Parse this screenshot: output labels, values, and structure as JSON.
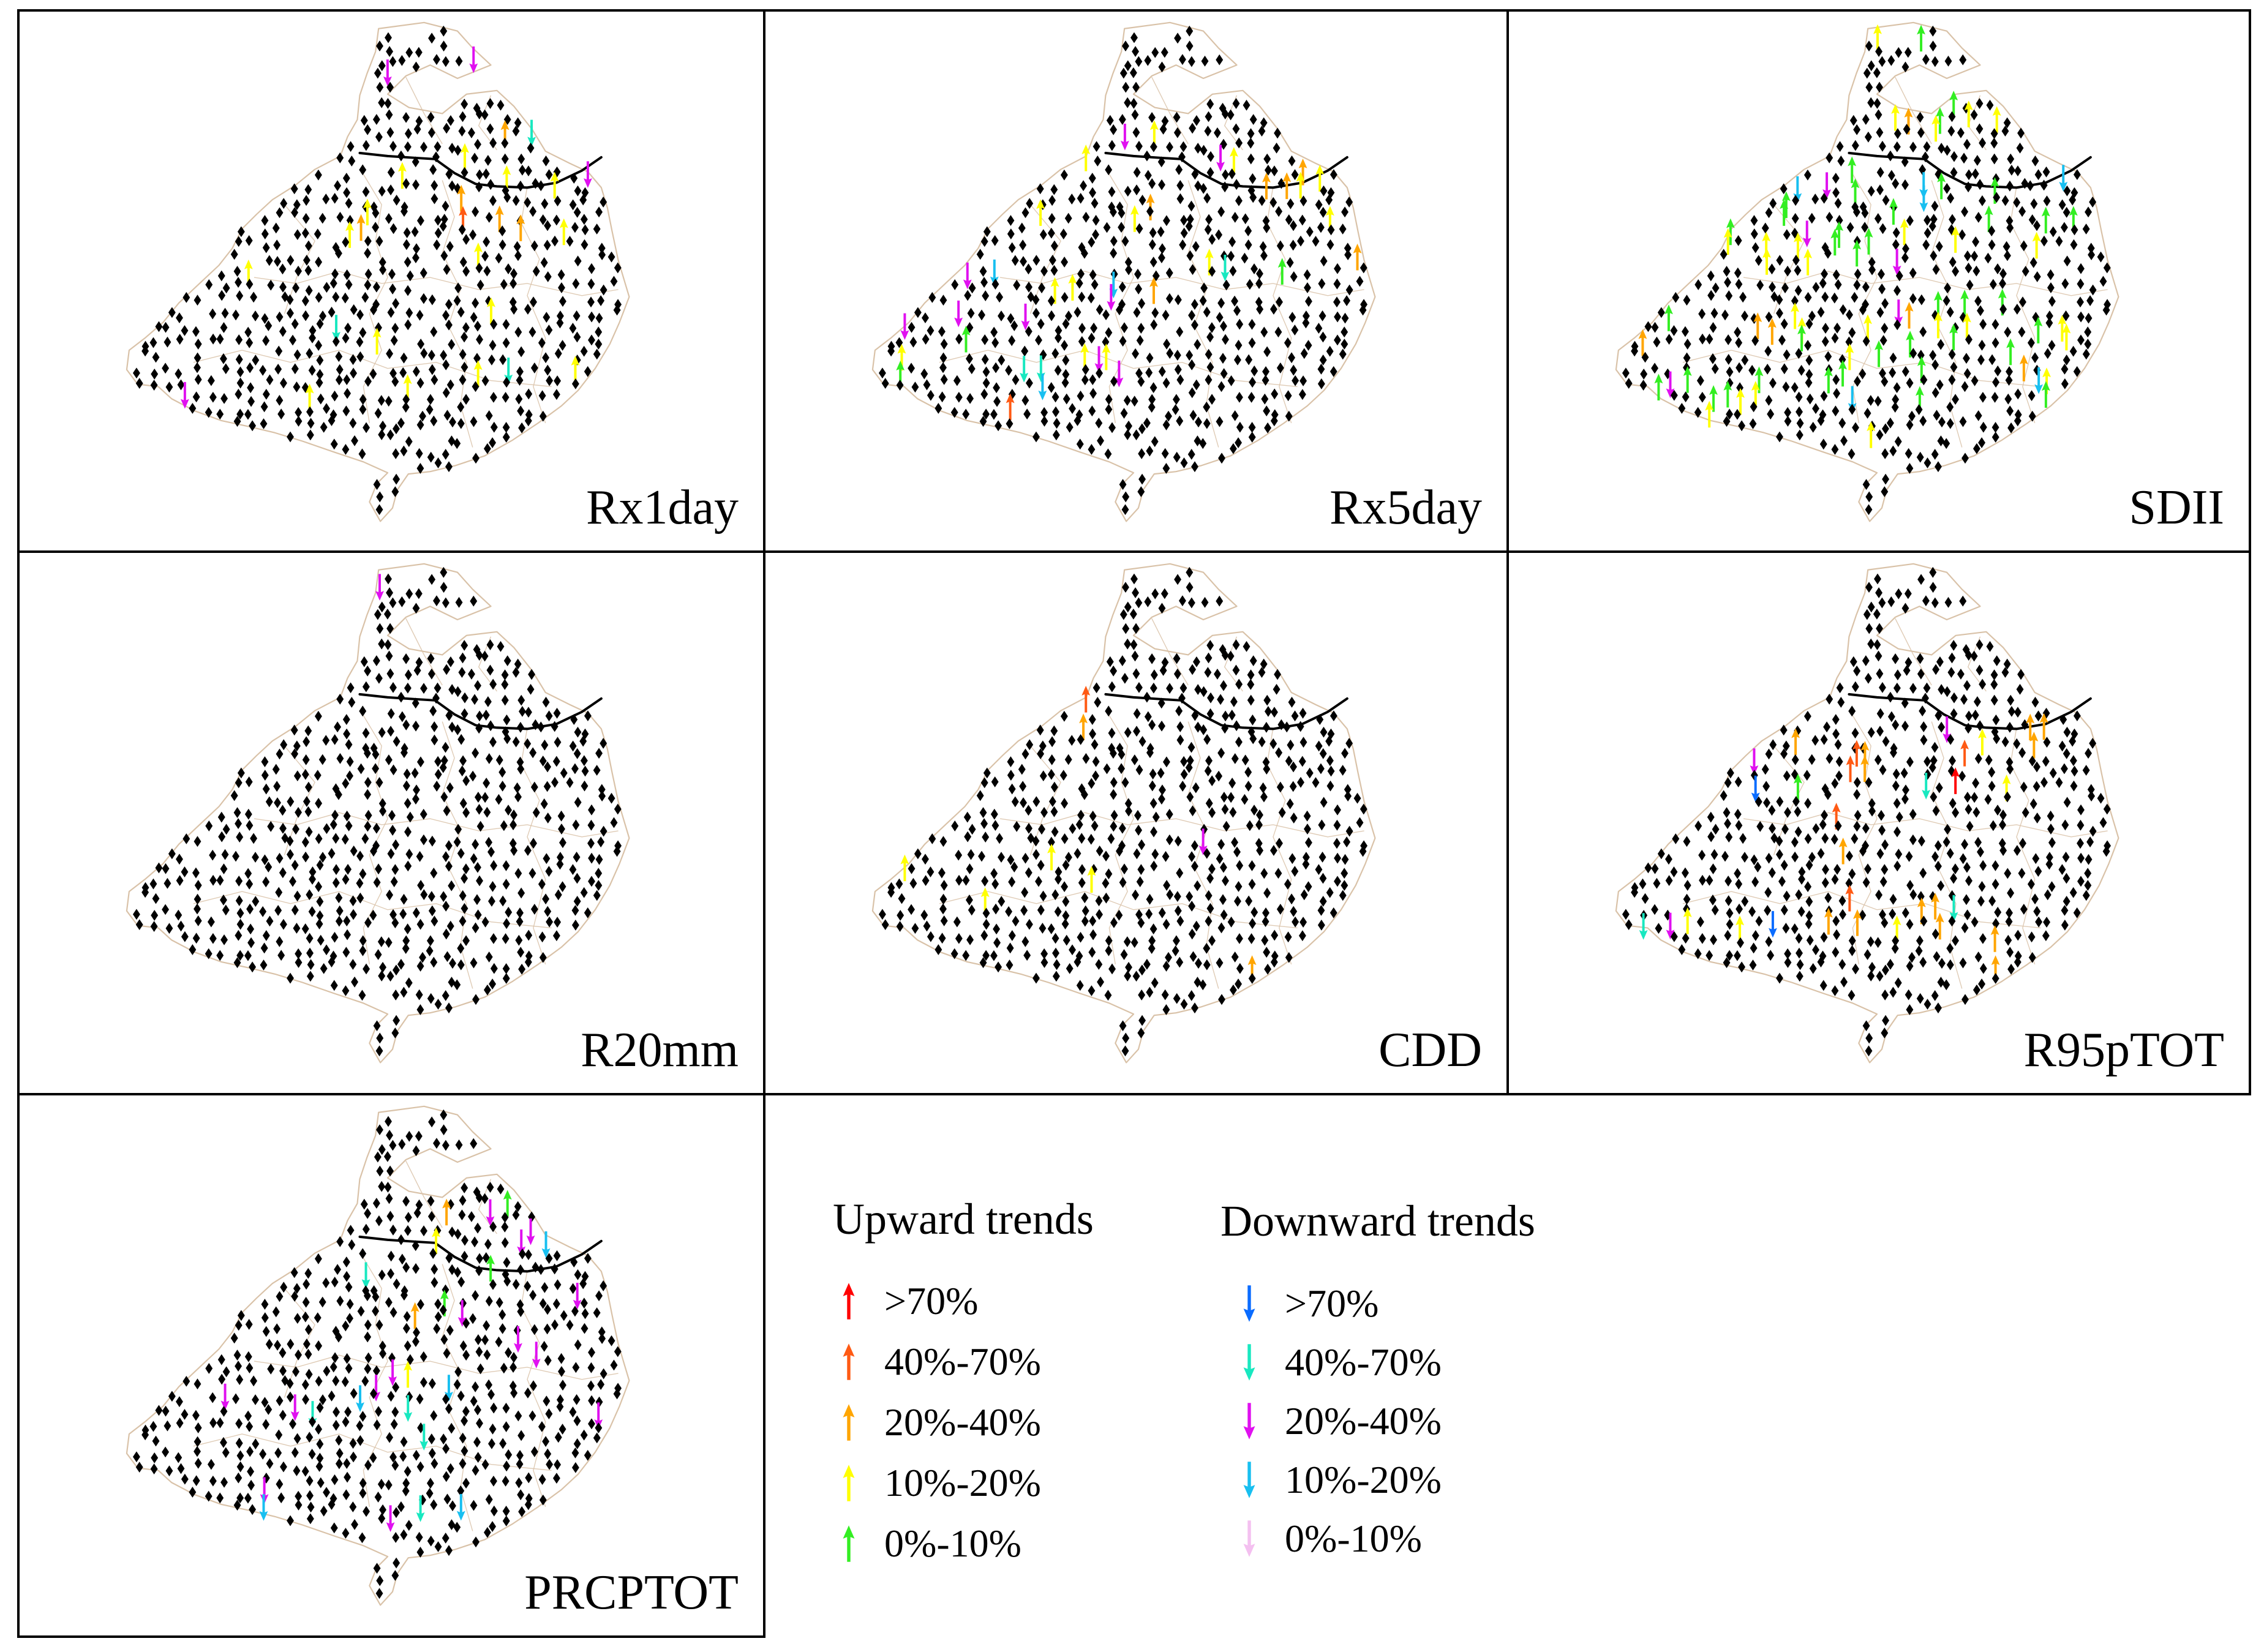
{
  "figure": {
    "panels": [
      {
        "id": "rx1day",
        "label": "Rx1day",
        "up": {
          "2": 1,
          "3": 5,
          "4": 15
        },
        "down": {
          "2": 3,
          "3": 4
        }
      },
      {
        "id": "rx5day",
        "label": "Rx5day",
        "up": {
          "2": 1,
          "3": 6,
          "4": 14,
          "5": 3
        },
        "down": {
          "2": 3,
          "3": 9,
          "4": 3
        }
      },
      {
        "id": "sdii",
        "label": "SDII",
        "up": {
          "3": 6,
          "4": 26,
          "5": 38
        },
        "down": {
          "3": 5,
          "4": 6
        }
      },
      {
        "id": "r20mm",
        "label": "R20mm",
        "up": {},
        "down": {
          "3": 1
        }
      },
      {
        "id": "cdd",
        "label": "CDD",
        "up": {
          "2": 1,
          "3": 2,
          "4": 4
        },
        "down": {
          "3": 1
        }
      },
      {
        "id": "r95ptot",
        "label": "R95pTOT",
        "up": {
          "1": 1,
          "2": 5,
          "3": 14,
          "4": 5,
          "5": 1
        },
        "down": {
          "1": 2,
          "2": 3,
          "3": 3
        }
      },
      {
        "id": "prcptot",
        "label": "PRCPTOT",
        "up": {
          "3": 2,
          "4": 2,
          "5": 3
        },
        "down": {
          "2": 5,
          "3": 14,
          "4": 5
        }
      }
    ]
  },
  "legend": {
    "upward_title": "Upward trends",
    "downward_title": "Downward trends",
    "upward": [
      {
        "label": ">70%",
        "color": "#ff0000"
      },
      {
        "label": "40%-70%",
        "color": "#ff5a14"
      },
      {
        "label": "20%-40%",
        "color": "#ffa500"
      },
      {
        "label": "10%-20%",
        "color": "#ffff00"
      },
      {
        "label": "0%-10%",
        "color": "#33ee22"
      }
    ],
    "downward": [
      {
        "label": ">70%",
        "color": "#0a6cff"
      },
      {
        "label": "40%-70%",
        "color": "#18e8c0"
      },
      {
        "label": "20%-40%",
        "color": "#e010f0"
      },
      {
        "label": "10%-20%",
        "color": "#18bff0"
      },
      {
        "label": "0%-10%",
        "color": "#f4c0f0"
      }
    ]
  },
  "colors": {
    "station": "#000000",
    "boundary": "#d9c2a8",
    "divide_line": "#000000"
  }
}
